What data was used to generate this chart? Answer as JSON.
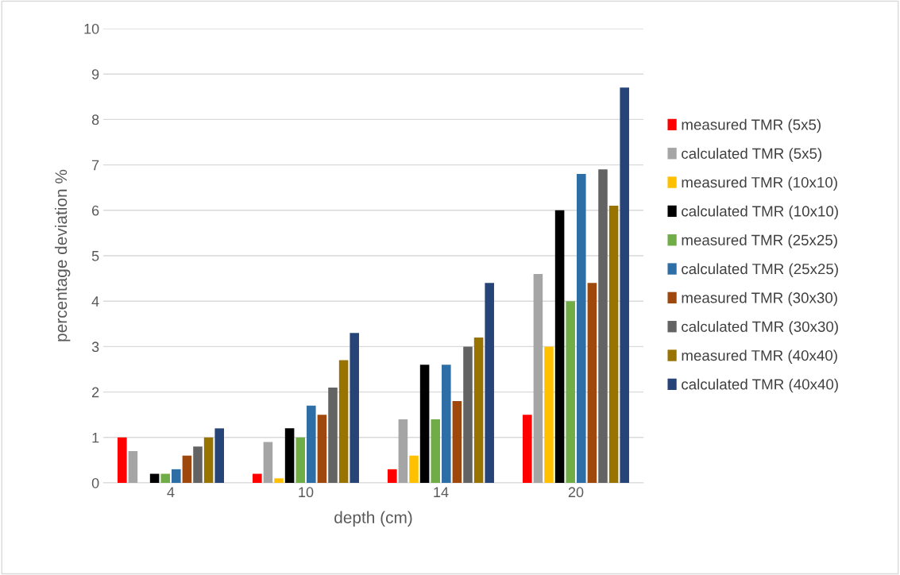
{
  "chart_data": {
    "type": "bar",
    "xlabel": "depth (cm)",
    "ylabel": "percentage deviation %",
    "categories": [
      "4",
      "10",
      "14",
      "20"
    ],
    "series": [
      {
        "name": "measured TMR (5x5)",
        "color": "#ff0000",
        "values": [
          1.0,
          0.2,
          0.3,
          1.5
        ]
      },
      {
        "name": "calculated TMR (5x5)",
        "color": "#a5a5a5",
        "values": [
          0.7,
          0.9,
          1.4,
          4.6
        ]
      },
      {
        "name": "measured TMR (10x10)",
        "color": "#ffc000",
        "values": [
          0,
          0.1,
          0.6,
          3.0
        ]
      },
      {
        "name": "calculated TMR (10x10)",
        "color": "#000000",
        "values": [
          0.2,
          1.2,
          2.6,
          6.0
        ]
      },
      {
        "name": "measured TMR (25x25)",
        "color": "#70ad47",
        "values": [
          0.2,
          1.0,
          1.4,
          4.0
        ]
      },
      {
        "name": "calculated TMR (25x25)",
        "color": "#2e6ea6",
        "values": [
          0.3,
          1.7,
          2.6,
          6.8
        ]
      },
      {
        "name": "measured TMR (30x30)",
        "color": "#9e480e",
        "values": [
          0.6,
          1.5,
          1.8,
          4.4
        ]
      },
      {
        "name": "calculated TMR (30x30)",
        "color": "#636363",
        "values": [
          0.8,
          2.1,
          3.0,
          6.9
        ]
      },
      {
        "name": "measured TMR (40x40)",
        "color": "#997300",
        "values": [
          1.0,
          2.7,
          3.2,
          6.1
        ]
      },
      {
        "name": "calculated TMR (40x40)",
        "color": "#264478",
        "values": [
          1.2,
          3.3,
          4.4,
          8.7
        ]
      }
    ],
    "ylim": [
      0,
      10
    ],
    "yticks": [
      0,
      1,
      2,
      3,
      4,
      5,
      6,
      7,
      8,
      9,
      10
    ],
    "grid": "y",
    "legend": "right"
  }
}
